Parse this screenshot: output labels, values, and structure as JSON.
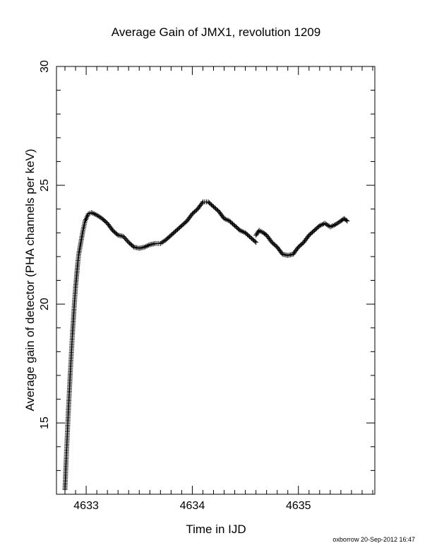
{
  "chart_data": {
    "type": "scatter",
    "title": "Average Gain of JMX1, revolution 1209",
    "xlabel": "Time in IJD",
    "ylabel": "Average gain of detector (PHA channels per keV)",
    "xlim": [
      4632.72,
      4635.72
    ],
    "ylim": [
      12,
      30
    ],
    "xticks": [
      4633,
      4634,
      4635
    ],
    "yticks": [
      15,
      20,
      25,
      30
    ],
    "marker": "+",
    "color": "#000000",
    "grid": false,
    "series": [
      {
        "segments": [
          [
            [
              4632.8,
              12.2
            ],
            [
              4632.81,
              13.3
            ],
            [
              4632.82,
              14.3
            ],
            [
              4632.83,
              15.3
            ],
            [
              4632.84,
              16.2
            ],
            [
              4632.85,
              17.1
            ],
            [
              4632.86,
              17.9
            ],
            [
              4632.87,
              18.7
            ],
            [
              4632.88,
              19.4
            ],
            [
              4632.89,
              20.1
            ],
            [
              4632.9,
              20.7
            ],
            [
              4632.91,
              21.2
            ],
            [
              4632.92,
              21.7
            ],
            [
              4632.93,
              22.1
            ],
            [
              4632.95,
              22.6
            ],
            [
              4632.97,
              23.1
            ],
            [
              4632.99,
              23.5
            ],
            [
              4633.02,
              23.8
            ],
            [
              4633.05,
              23.85
            ],
            [
              4633.1,
              23.75
            ],
            [
              4633.15,
              23.6
            ],
            [
              4633.2,
              23.4
            ],
            [
              4633.25,
              23.1
            ],
            [
              4633.3,
              22.9
            ],
            [
              4633.35,
              22.85
            ],
            [
              4633.4,
              22.6
            ],
            [
              4633.45,
              22.4
            ],
            [
              4633.5,
              22.35
            ],
            [
              4633.55,
              22.4
            ],
            [
              4633.6,
              22.5
            ],
            [
              4633.65,
              22.55
            ],
            [
              4633.7,
              22.55
            ],
            [
              4633.75,
              22.7
            ],
            [
              4633.8,
              22.9
            ],
            [
              4633.85,
              23.1
            ],
            [
              4633.9,
              23.3
            ],
            [
              4633.95,
              23.5
            ],
            [
              4634.0,
              23.8
            ],
            [
              4634.05,
              24.0
            ],
            [
              4634.1,
              24.3
            ],
            [
              4634.15,
              24.3
            ],
            [
              4634.2,
              24.1
            ],
            [
              4634.25,
              23.9
            ],
            [
              4634.3,
              23.6
            ],
            [
              4634.35,
              23.5
            ],
            [
              4634.4,
              23.3
            ],
            [
              4634.45,
              23.1
            ],
            [
              4634.5,
              23.0
            ],
            [
              4634.55,
              22.8
            ],
            [
              4634.6,
              22.6
            ]
          ],
          [
            [
              4634.6,
              22.9
            ],
            [
              4634.63,
              23.1
            ],
            [
              4634.67,
              23.0
            ],
            [
              4634.7,
              22.9
            ],
            [
              4634.75,
              22.6
            ],
            [
              4634.8,
              22.4
            ],
            [
              4634.85,
              22.1
            ],
            [
              4634.9,
              22.05
            ],
            [
              4634.95,
              22.1
            ],
            [
              4635.0,
              22.4
            ],
            [
              4635.05,
              22.6
            ],
            [
              4635.1,
              22.9
            ],
            [
              4635.15,
              23.1
            ],
            [
              4635.2,
              23.3
            ],
            [
              4635.25,
              23.4
            ],
            [
              4635.3,
              23.25
            ],
            [
              4635.35,
              23.35
            ],
            [
              4635.4,
              23.5
            ],
            [
              4635.43,
              23.6
            ],
            [
              4635.46,
              23.5
            ]
          ]
        ]
      }
    ]
  },
  "footer": "oxborrow 20-Sep-2012 16:47"
}
